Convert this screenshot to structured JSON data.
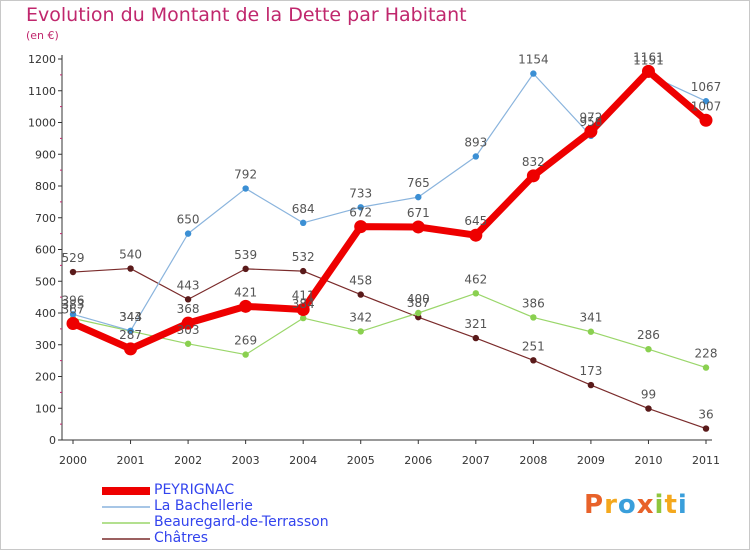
{
  "title": "Evolution du Montant de la Dette par Habitant",
  "unit": "(en €)",
  "logo": {
    "text": "Proxiti",
    "colors": [
      "#e8622a",
      "#f4a81d",
      "#3a9fdb",
      "#e8622a",
      "#8fc63d",
      "#f4a81d",
      "#3a9fdb"
    ]
  },
  "chart_data": {
    "type": "line",
    "x": [
      "2000",
      "2001",
      "2002",
      "2003",
      "2004",
      "2005",
      "2006",
      "2007",
      "2008",
      "2009",
      "2010",
      "2011"
    ],
    "ylim": [
      0,
      1200
    ],
    "yticks": [
      0,
      100,
      200,
      300,
      400,
      500,
      600,
      700,
      800,
      900,
      1000,
      1100,
      1200
    ],
    "grid": false,
    "legend_position": "bottom-left",
    "series": [
      {
        "name": "Châtres",
        "color": "#7a2b2b",
        "width": 1.2,
        "marker": "#5a1a1a",
        "values": [
          529,
          540,
          443,
          539,
          532,
          458,
          387,
          321,
          251,
          173,
          99,
          36
        ],
        "labels": [
          "529",
          "540",
          "443",
          "539",
          "532",
          "458",
          "387",
          "321",
          "251",
          "173",
          "99",
          "36"
        ]
      },
      {
        "name": "Beauregard-de-Terrasson",
        "color": "#9ad66a",
        "width": 1.2,
        "marker": "#8ad050",
        "values": [
          383,
          343,
          303,
          269,
          384,
          342,
          400,
          462,
          386,
          341,
          286,
          228
        ],
        "labels": [
          "383",
          "343",
          "303",
          "269",
          "384",
          "342",
          "400",
          "462",
          "386",
          "341",
          "286",
          "228"
        ]
      },
      {
        "name": "La Bachellerie",
        "color": "#8ab4dd",
        "width": 1.2,
        "marker": "#3b8fd4",
        "values": [
          396,
          344,
          650,
          792,
          684,
          733,
          765,
          893,
          1154,
          958,
          1151,
          1067
        ],
        "labels": [
          "396",
          "344",
          "650",
          "792",
          "684",
          "733",
          "765",
          "893",
          "1154",
          "958",
          "1151",
          "1067"
        ]
      },
      {
        "name": "PEYRIGNAC",
        "color": "#ee0000",
        "width": 7,
        "marker": "#ee0000",
        "values": [
          367,
          287,
          368,
          421,
          411,
          672,
          671,
          645,
          832,
          972,
          1161,
          1007
        ],
        "labels": [
          "367",
          "287",
          "368",
          "421",
          "411",
          "672",
          "671",
          "645",
          "832",
          "972",
          "1161",
          "1007"
        ]
      }
    ],
    "legend": [
      {
        "name": "PEYRIGNAC",
        "color": "#ee0000",
        "thick": true
      },
      {
        "name": "La Bachellerie",
        "color": "#8ab4dd",
        "thick": false
      },
      {
        "name": "Beauregard-de-Terrasson",
        "color": "#9ad66a",
        "thick": false
      },
      {
        "name": "Châtres",
        "color": "#7a2b2b",
        "thick": false
      }
    ]
  }
}
